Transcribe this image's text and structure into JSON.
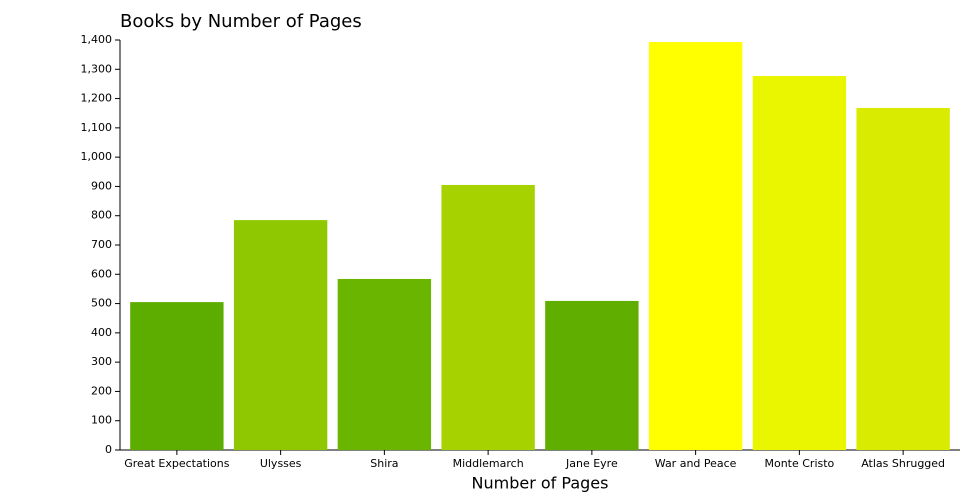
{
  "chart_data": {
    "type": "bar",
    "title": "Books by Number of Pages",
    "x_label": "Number of Pages",
    "categories": [
      "Great Expectations",
      "Ulysses",
      "Shira",
      "Middlemarch",
      "Jane Eyre",
      "War and Peace",
      "Monte Cristo",
      "Atlas Shrugged"
    ],
    "values": [
      505,
      785,
      584,
      905,
      509,
      1393,
      1277,
      1168
    ],
    "colors": [
      "#5cad00",
      "#8fc800",
      "#6ab500",
      "#a6d200",
      "#5fae00",
      "#ffff00",
      "#eaf500",
      "#d8eb00"
    ],
    "ylim": [
      0,
      1400
    ],
    "yticks": [
      0,
      100,
      200,
      300,
      400,
      500,
      600,
      700,
      800,
      900,
      {
        "value": 1000,
        "label": "1,000"
      },
      {
        "value": 1100,
        "label": "1,100"
      },
      {
        "value": 1200,
        "label": "1,200"
      },
      {
        "value": 1300,
        "label": "1,300"
      },
      {
        "value": 1400,
        "label": "1,400"
      }
    ],
    "grid": false
  }
}
